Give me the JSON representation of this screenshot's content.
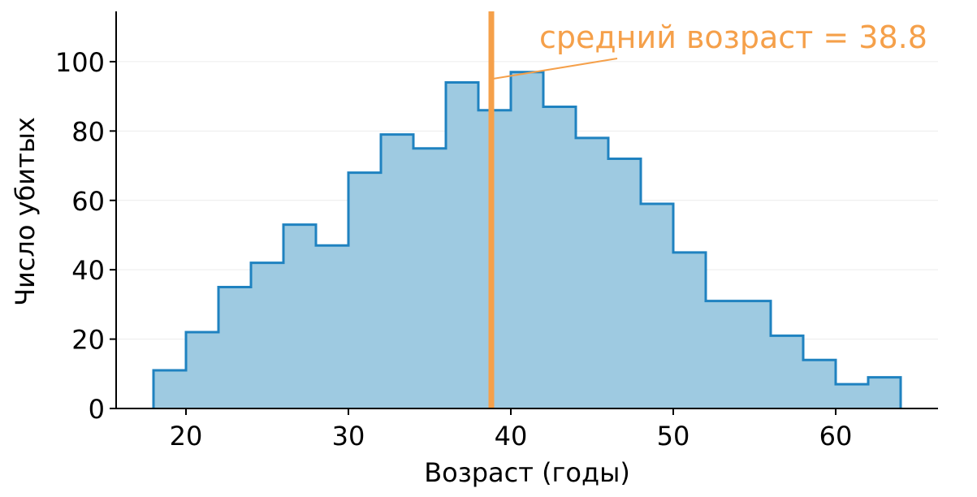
{
  "chart_data": {
    "type": "histogram",
    "xlabel": "Возраст (годы)",
    "ylabel": "Число убитых",
    "xlim": [
      15.7,
      66.3
    ],
    "ylim": [
      0,
      114.5
    ],
    "xticks": [
      20,
      30,
      40,
      50,
      60
    ],
    "yticks": [
      0,
      20,
      40,
      60,
      80,
      100
    ],
    "grid": "horizontal",
    "bin_edges": [
      18,
      20,
      22,
      24,
      26,
      28,
      30,
      32,
      34,
      36,
      38,
      40,
      42,
      44,
      46,
      48,
      50,
      52,
      54,
      56,
      58,
      60,
      62,
      64
    ],
    "counts": [
      11,
      22,
      35,
      42,
      53,
      47,
      68,
      79,
      75,
      94,
      86,
      97,
      87,
      78,
      72,
      59,
      45,
      31,
      31,
      21,
      14,
      7,
      9
    ],
    "mean_line": {
      "x": 38.8,
      "color": "#f5a04a"
    },
    "annotation": {
      "text": "средний возраст = 38.8",
      "color": "#f5a04a"
    },
    "colors": {
      "fill": "#9ecae1",
      "edge": "#1f82c0"
    }
  }
}
